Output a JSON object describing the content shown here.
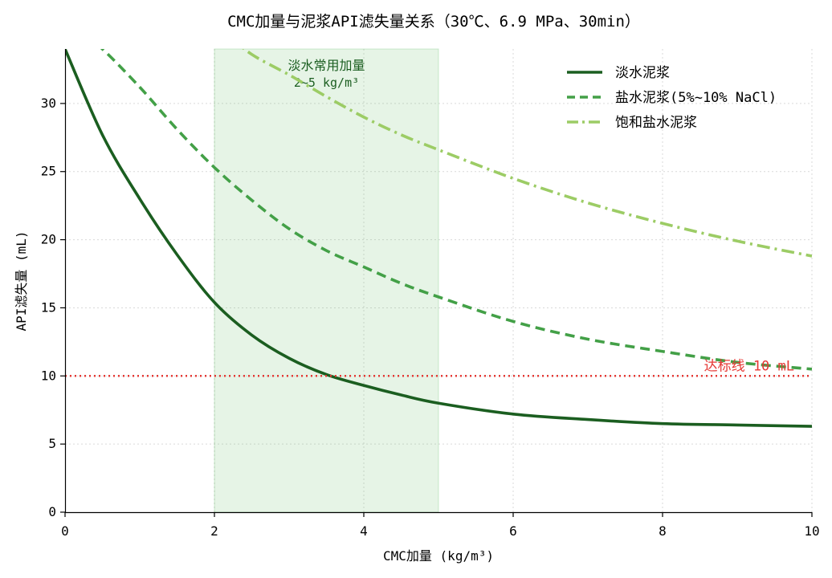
{
  "chart_data": {
    "type": "line",
    "title": "CMC加量与泥浆API滤失量关系（30℃、6.9 MPa、30min）",
    "xlabel": "CMC加量 (kg/m³)",
    "ylabel": "API滤失量 (mL)",
    "xlim": [
      0,
      10
    ],
    "ylim": [
      0,
      34
    ],
    "xticks": [
      0,
      2,
      4,
      6,
      8,
      10
    ],
    "yticks": [
      0,
      5,
      10,
      15,
      20,
      25,
      30
    ],
    "grid": true,
    "legend_position": "top-right",
    "shaded_region": {
      "x_range": [
        2,
        5
      ],
      "label_line1": "淡水常用加量",
      "label_line2": "2~5 kg/m³",
      "color": "#4caf50"
    },
    "reference_line": {
      "y": 10,
      "label": "达标线 10 mL",
      "color": "#e53935"
    },
    "series": [
      {
        "name": "淡水泥浆",
        "style": "solid",
        "color": "#1b5e20",
        "x": [
          0,
          0.5,
          1,
          1.5,
          2,
          2.5,
          3,
          3.5,
          4,
          4.5,
          5,
          6,
          7,
          8,
          9,
          10
        ],
        "y": [
          34.0,
          27.7,
          23.0,
          18.9,
          15.4,
          13.0,
          11.3,
          10.1,
          9.3,
          8.6,
          8.0,
          7.2,
          6.8,
          6.5,
          6.4,
          6.3
        ]
      },
      {
        "name": "盐水泥浆(5%~10% NaCl)",
        "style": "dashed",
        "color": "#43a047",
        "x": [
          0.25,
          0.5,
          1,
          1.5,
          2,
          2.5,
          3,
          3.5,
          4,
          4.5,
          5,
          6,
          7,
          8,
          9,
          10
        ],
        "y": [
          35.0,
          34.0,
          31.2,
          28.1,
          25.3,
          22.9,
          20.8,
          19.2,
          18.0,
          16.8,
          15.8,
          14.0,
          12.7,
          11.8,
          11.0,
          10.5
        ]
      },
      {
        "name": "饱和盐水泥浆",
        "style": "dashdot",
        "color": "#9ccc65",
        "x": [
          2.2,
          2.5,
          3,
          3.5,
          4,
          4.5,
          5,
          6,
          7,
          8,
          9,
          10
        ],
        "y": [
          35.0,
          33.6,
          32.1,
          30.5,
          29.0,
          27.7,
          26.6,
          24.5,
          22.7,
          21.2,
          19.9,
          18.8
        ]
      }
    ]
  }
}
